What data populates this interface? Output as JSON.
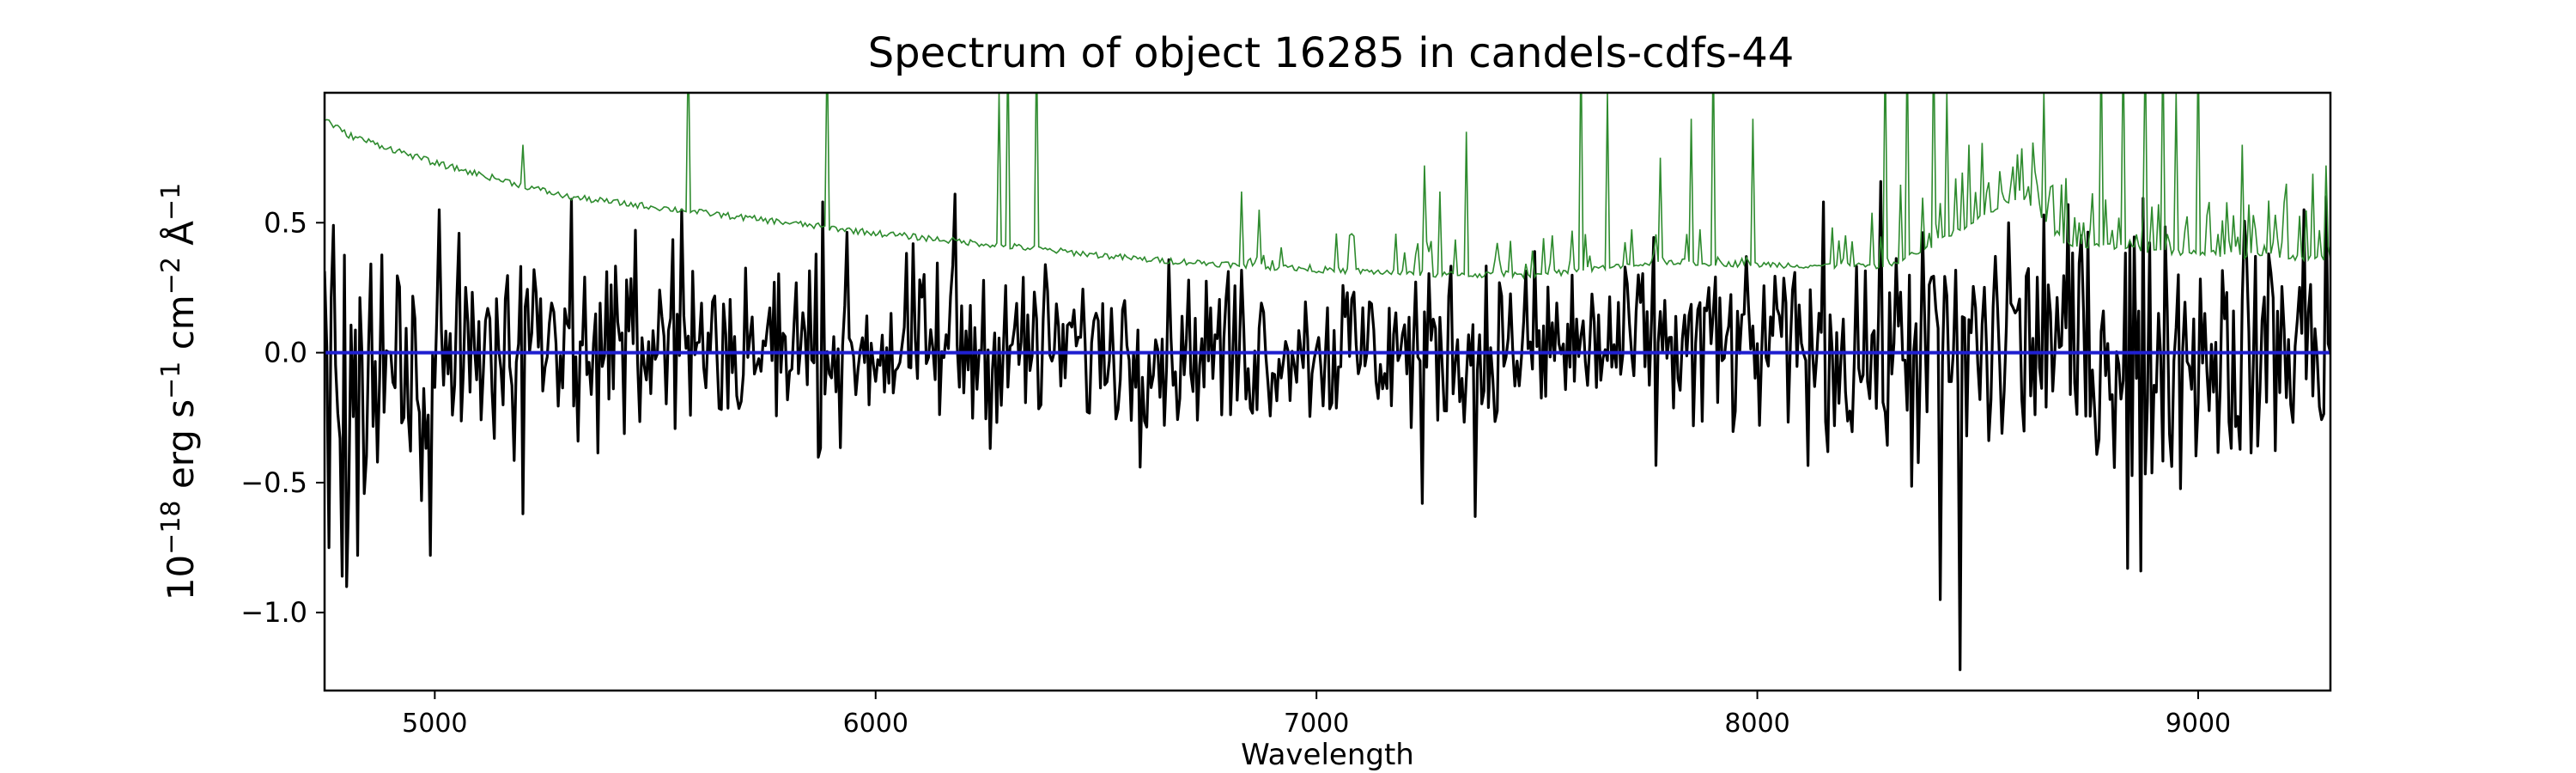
{
  "chart_data": {
    "type": "line",
    "title": "Spectrum of object 16285 in candels-cdfs-44",
    "xlabel": "Wavelength",
    "ylabel": {
      "base": "10",
      "exp1": "−18",
      "part2": " erg s",
      "exp2": "−1",
      "part3": " cm",
      "exp3": "−2",
      "part4": " Å",
      "exp4": "−1"
    },
    "xlim": [
      4750,
      9300
    ],
    "ylim": [
      -1.3,
      1.0
    ],
    "xticks": [
      5000,
      6000,
      7000,
      8000,
      9000
    ],
    "xtick_labels": [
      "5000",
      "6000",
      "7000",
      "8000",
      "9000"
    ],
    "yticks": [
      0.5,
      0.0,
      -0.5,
      -1.0
    ],
    "ytick_labels": [
      "0.5",
      "0.0",
      "−0.5",
      "−1.0"
    ],
    "grid": false,
    "series": [
      {
        "role": "flux",
        "color": "#000000",
        "x_range": [
          4750,
          9300
        ],
        "step": 5,
        "noise_envelope": [
          [
            4750,
            0.28
          ],
          [
            5000,
            0.22
          ],
          [
            5500,
            0.18
          ],
          [
            6000,
            0.16
          ],
          [
            7000,
            0.15
          ],
          [
            7500,
            0.17
          ],
          [
            8000,
            0.18
          ],
          [
            8300,
            0.22
          ],
          [
            8600,
            0.26
          ],
          [
            9000,
            0.24
          ],
          [
            9300,
            0.22
          ]
        ],
        "notable_points": [
          [
            4760,
            -0.75
          ],
          [
            4790,
            -0.86
          ],
          [
            4800,
            -0.9
          ],
          [
            4825,
            -0.78
          ],
          [
            4990,
            -0.78
          ],
          [
            5010,
            0.55
          ],
          [
            5200,
            -0.62
          ],
          [
            5310,
            0.59
          ],
          [
            5560,
            0.55
          ],
          [
            5880,
            0.58
          ],
          [
            6180,
            0.61
          ],
          [
            7240,
            -0.58
          ],
          [
            7360,
            -0.63
          ],
          [
            8150,
            0.58
          ],
          [
            8415,
            -0.95
          ],
          [
            8460,
            -1.22
          ],
          [
            8570,
            0.5
          ],
          [
            8650,
            0.53
          ],
          [
            8840,
            -0.83
          ],
          [
            8870,
            -0.84
          ],
          [
            9240,
            0.55
          ],
          [
            9290,
            0.6
          ]
        ]
      },
      {
        "role": "error",
        "color": "#2e8b2e",
        "baseline": [
          [
            4750,
            0.9
          ],
          [
            4800,
            0.84
          ],
          [
            5000,
            0.73
          ],
          [
            5300,
            0.6
          ],
          [
            5700,
            0.52
          ],
          [
            6000,
            0.46
          ],
          [
            6300,
            0.41
          ],
          [
            6600,
            0.36
          ],
          [
            7000,
            0.32
          ],
          [
            7300,
            0.3
          ],
          [
            7500,
            0.3
          ],
          [
            7800,
            0.35
          ],
          [
            8000,
            0.34
          ],
          [
            8300,
            0.33
          ],
          [
            8600,
            0.6
          ],
          [
            8700,
            0.42
          ],
          [
            9000,
            0.38
          ],
          [
            9300,
            0.36
          ]
        ],
        "spikes": [
          [
            5200,
            0.8
          ],
          [
            5575,
            1.2
          ],
          [
            5890,
            1.2
          ],
          [
            6280,
            1.0
          ],
          [
            6300,
            1.2
          ],
          [
            6365,
            1.2
          ],
          [
            6830,
            0.62
          ],
          [
            6870,
            0.55
          ],
          [
            7245,
            0.72
          ],
          [
            7280,
            0.62
          ],
          [
            7340,
            0.85
          ],
          [
            7600,
            1.2
          ],
          [
            7660,
            1.0
          ],
          [
            7780,
            0.75
          ],
          [
            7850,
            0.9
          ],
          [
            7900,
            1.2
          ],
          [
            7990,
            0.9
          ],
          [
            8290,
            1.2
          ],
          [
            8340,
            1.2
          ],
          [
            8400,
            1.2
          ],
          [
            8430,
            1.0
          ],
          [
            8480,
            0.8
          ],
          [
            8650,
            1.0
          ],
          [
            8780,
            1.2
          ],
          [
            8830,
            1.2
          ],
          [
            8880,
            1.2
          ],
          [
            8920,
            1.2
          ],
          [
            8950,
            1.0
          ],
          [
            9000,
            1.2
          ],
          [
            9100,
            0.8
          ],
          [
            9200,
            0.65
          ],
          [
            9290,
            0.72
          ]
        ]
      },
      {
        "role": "zero-line",
        "color": "#1f1fd0",
        "values": [
          [
            4750,
            0.0
          ],
          [
            9300,
            0.0
          ]
        ]
      }
    ]
  }
}
